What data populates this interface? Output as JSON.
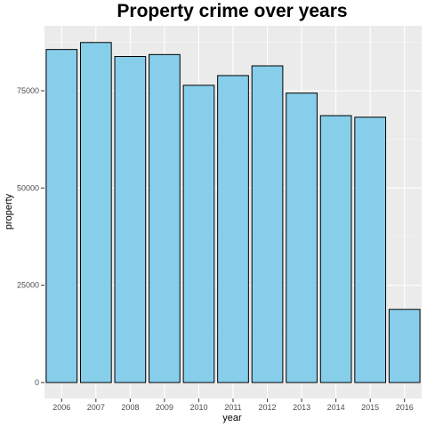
{
  "chart_data": {
    "type": "bar",
    "title": "Property crime over years",
    "xlabel": "year",
    "ylabel": "property",
    "categories": [
      "2006",
      "2007",
      "2008",
      "2009",
      "2010",
      "2011",
      "2012",
      "2013",
      "2014",
      "2015",
      "2016"
    ],
    "values": [
      85600,
      87400,
      83800,
      84300,
      76400,
      78900,
      81400,
      74400,
      68600,
      68200,
      18800
    ],
    "ylim": [
      0,
      91000
    ],
    "yticks": [
      0,
      25000,
      50000,
      75000
    ],
    "ytick_labels": [
      "0",
      "25000",
      "50000",
      "75000"
    ],
    "grid": true,
    "colors": {
      "bar_fill": "#87ceeb",
      "bar_stroke": "#000000",
      "panel_background": "#ebebeb",
      "grid_major": "#ffffff",
      "grid_minor": "#f5f5f5"
    }
  }
}
